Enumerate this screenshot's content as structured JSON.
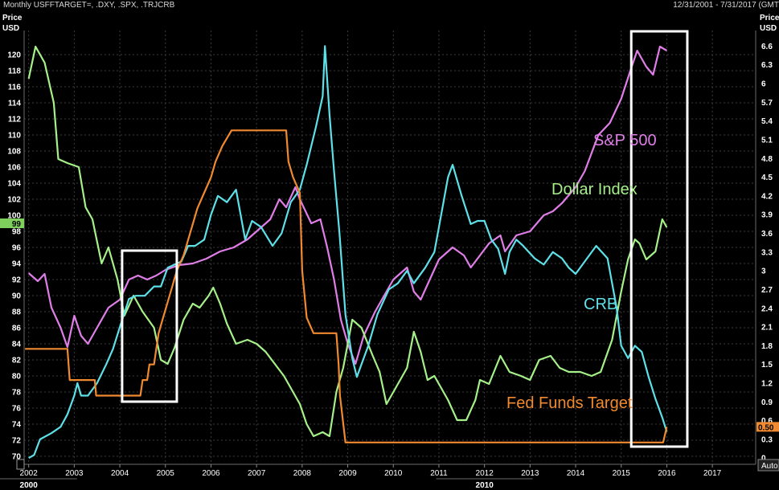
{
  "header": {
    "title": "Monthly USFFTARGET=, .DXY, .SPX, .TRJCRB",
    "date_range": "12/31/2001 - 7/31/2017 (GMT"
  },
  "chart_data": {
    "type": "line",
    "left_axis": {
      "label_line1": "Price",
      "label_line2": "USD",
      "range": [
        69,
        123
      ],
      "ticks": [
        70,
        72,
        74,
        76,
        78,
        80,
        82,
        84,
        86,
        88,
        90,
        92,
        94,
        96,
        98,
        100,
        102,
        104,
        106,
        108,
        110,
        112,
        114,
        116,
        118,
        120
      ],
      "current_value_tag": "99"
    },
    "right_axis": {
      "label_line1": "Price",
      "label_line2": "USD",
      "range": [
        -0.1,
        6.85
      ],
      "ticks": [
        "0",
        "0.3",
        "0.6",
        "0.9",
        "1.2",
        "1.5",
        "1.8",
        "2.1",
        "2.4",
        "2.7",
        "3",
        "3.3",
        "3.6",
        "3.9",
        "4.2",
        "4.5",
        "4.8",
        "5.1",
        "5.4",
        "5.7",
        "6",
        "6.3",
        "6.6"
      ],
      "current_value_tag": "0.50",
      "auto_button": "Auto"
    },
    "x_axis": {
      "range": [
        2001.9,
        2017.95
      ],
      "years": [
        "2002",
        "2003",
        "2004",
        "2005",
        "2006",
        "2007",
        "2008",
        "2009",
        "2010",
        "2011",
        "2012",
        "2013",
        "2014",
        "2015",
        "2016",
        "2017"
      ],
      "decade_labels": [
        {
          "year": 2002,
          "label": "2000"
        },
        {
          "year": 2012,
          "label": "2010"
        }
      ]
    },
    "series": [
      {
        "name": "S&P 500",
        "color": "#e07ee8",
        "axis": "left",
        "points": [
          [
            2002.0,
            92.8
          ],
          [
            2002.2,
            91.8
          ],
          [
            2002.35,
            92.7
          ],
          [
            2002.5,
            88.5
          ],
          [
            2002.7,
            86.0
          ],
          [
            2002.85,
            83.6
          ],
          [
            2003.0,
            87.5
          ],
          [
            2003.15,
            85.0
          ],
          [
            2003.3,
            84.0
          ],
          [
            2003.5,
            86.0
          ],
          [
            2003.75,
            88.5
          ],
          [
            2004.0,
            89.5
          ],
          [
            2004.2,
            92.0
          ],
          [
            2004.4,
            92.5
          ],
          [
            2004.6,
            92.0
          ],
          [
            2004.8,
            92.5
          ],
          [
            2005.0,
            93.2
          ],
          [
            2005.3,
            93.8
          ],
          [
            2005.6,
            94.0
          ],
          [
            2005.9,
            94.6
          ],
          [
            2006.2,
            95.5
          ],
          [
            2006.5,
            96.0
          ],
          [
            2006.8,
            97.0
          ],
          [
            2007.0,
            98.0
          ],
          [
            2007.3,
            99.5
          ],
          [
            2007.5,
            102.0
          ],
          [
            2007.65,
            101.0
          ],
          [
            2007.85,
            103.5
          ],
          [
            2007.95,
            102.0
          ],
          [
            2008.2,
            99.0
          ],
          [
            2008.4,
            99.5
          ],
          [
            2008.55,
            96.0
          ],
          [
            2008.7,
            92.0
          ],
          [
            2008.85,
            87.0
          ],
          [
            2009.0,
            84.0
          ],
          [
            2009.17,
            81.5
          ],
          [
            2009.35,
            85.0
          ],
          [
            2009.6,
            88.0
          ],
          [
            2009.8,
            90.0
          ],
          [
            2010.0,
            92.0
          ],
          [
            2010.3,
            93.5
          ],
          [
            2010.45,
            90.5
          ],
          [
            2010.6,
            89.5
          ],
          [
            2010.8,
            92.0
          ],
          [
            2011.0,
            94.5
          ],
          [
            2011.3,
            96.0
          ],
          [
            2011.55,
            95.0
          ],
          [
            2011.7,
            93.5
          ],
          [
            2011.9,
            95.0
          ],
          [
            2012.1,
            96.5
          ],
          [
            2012.35,
            97.5
          ],
          [
            2012.45,
            95.5
          ],
          [
            2012.7,
            97.5
          ],
          [
            2013.0,
            98.0
          ],
          [
            2013.3,
            100.0
          ],
          [
            2013.5,
            100.5
          ],
          [
            2013.7,
            101.5
          ],
          [
            2014.0,
            103.5
          ],
          [
            2014.2,
            105.5
          ],
          [
            2014.5,
            110.0
          ],
          [
            2014.75,
            111.5
          ],
          [
            2015.0,
            114.5
          ],
          [
            2015.2,
            118.0
          ],
          [
            2015.35,
            120.5
          ],
          [
            2015.55,
            118.5
          ],
          [
            2015.7,
            117.5
          ],
          [
            2015.85,
            121.0
          ],
          [
            2016.0,
            120.5
          ]
        ]
      },
      {
        "name": "Dollar Index",
        "color": "#a6f08a",
        "axis": "left",
        "points": [
          [
            2002.0,
            117.0
          ],
          [
            2002.15,
            121.0
          ],
          [
            2002.35,
            119.0
          ],
          [
            2002.55,
            114.0
          ],
          [
            2002.65,
            107.0
          ],
          [
            2002.85,
            106.5
          ],
          [
            2003.1,
            106.0
          ],
          [
            2003.25,
            101.0
          ],
          [
            2003.4,
            99.5
          ],
          [
            2003.6,
            94.0
          ],
          [
            2003.75,
            96.0
          ],
          [
            2003.95,
            92.0
          ],
          [
            2004.1,
            87.5
          ],
          [
            2004.3,
            90.0
          ],
          [
            2004.5,
            88.0
          ],
          [
            2004.75,
            86.0
          ],
          [
            2004.9,
            82.0
          ],
          [
            2005.05,
            81.5
          ],
          [
            2005.2,
            83.5
          ],
          [
            2005.4,
            87.0
          ],
          [
            2005.6,
            89.0
          ],
          [
            2005.75,
            88.5
          ],
          [
            2005.95,
            90.0
          ],
          [
            2006.05,
            91.0
          ],
          [
            2006.2,
            89.0
          ],
          [
            2006.35,
            86.5
          ],
          [
            2006.55,
            84.0
          ],
          [
            2006.8,
            84.5
          ],
          [
            2007.0,
            84.0
          ],
          [
            2007.2,
            83.0
          ],
          [
            2007.4,
            81.5
          ],
          [
            2007.6,
            80.0
          ],
          [
            2007.8,
            78.0
          ],
          [
            2007.95,
            76.5
          ],
          [
            2008.1,
            74.0
          ],
          [
            2008.25,
            72.5
          ],
          [
            2008.45,
            73.0
          ],
          [
            2008.6,
            72.5
          ],
          [
            2008.75,
            78.0
          ],
          [
            2008.9,
            81.0
          ],
          [
            2009.1,
            87.0
          ],
          [
            2009.3,
            86.0
          ],
          [
            2009.55,
            82.5
          ],
          [
            2009.7,
            80.5
          ],
          [
            2009.85,
            76.5
          ],
          [
            2010.0,
            78.0
          ],
          [
            2010.3,
            81.0
          ],
          [
            2010.45,
            85.5
          ],
          [
            2010.6,
            83.0
          ],
          [
            2010.75,
            79.5
          ],
          [
            2010.9,
            80.0
          ],
          [
            2011.2,
            77.0
          ],
          [
            2011.4,
            74.5
          ],
          [
            2011.6,
            74.5
          ],
          [
            2011.8,
            77.0
          ],
          [
            2011.9,
            79.5
          ],
          [
            2012.1,
            79.0
          ],
          [
            2012.35,
            82.5
          ],
          [
            2012.55,
            80.5
          ],
          [
            2012.8,
            80.0
          ],
          [
            2013.0,
            79.5
          ],
          [
            2013.2,
            82.0
          ],
          [
            2013.45,
            82.5
          ],
          [
            2013.65,
            81.0
          ],
          [
            2013.85,
            80.5
          ],
          [
            2014.1,
            80.5
          ],
          [
            2014.35,
            80.0
          ],
          [
            2014.55,
            80.5
          ],
          [
            2014.8,
            84.5
          ],
          [
            2015.0,
            90.5
          ],
          [
            2015.15,
            94.5
          ],
          [
            2015.3,
            97.0
          ],
          [
            2015.4,
            96.5
          ],
          [
            2015.55,
            94.5
          ],
          [
            2015.75,
            95.5
          ],
          [
            2015.9,
            99.5
          ],
          [
            2016.0,
            98.5
          ]
        ]
      },
      {
        "name": "CRB",
        "color": "#5ee0e8",
        "axis": "right",
        "points": [
          [
            2002.0,
            0.0
          ],
          [
            2002.12,
            0.05
          ],
          [
            2002.25,
            0.3
          ],
          [
            2002.5,
            0.4
          ],
          [
            2002.7,
            0.5
          ],
          [
            2002.85,
            0.7
          ],
          [
            2003.0,
            1.0
          ],
          [
            2003.07,
            1.2
          ],
          [
            2003.15,
            1.0
          ],
          [
            2003.3,
            1.0
          ],
          [
            2003.5,
            1.2
          ],
          [
            2003.7,
            1.5
          ],
          [
            2003.85,
            1.75
          ],
          [
            2004.0,
            2.1
          ],
          [
            2004.2,
            2.55
          ],
          [
            2004.35,
            2.6
          ],
          [
            2004.55,
            2.6
          ],
          [
            2004.75,
            2.75
          ],
          [
            2004.9,
            2.75
          ],
          [
            2005.05,
            3.05
          ],
          [
            2005.2,
            3.1
          ],
          [
            2005.35,
            3.15
          ],
          [
            2005.5,
            3.4
          ],
          [
            2005.65,
            3.4
          ],
          [
            2005.85,
            3.5
          ],
          [
            2006.0,
            3.9
          ],
          [
            2006.15,
            4.2
          ],
          [
            2006.35,
            4.1
          ],
          [
            2006.55,
            4.3
          ],
          [
            2006.75,
            3.5
          ],
          [
            2006.9,
            3.8
          ],
          [
            2007.1,
            3.7
          ],
          [
            2007.35,
            3.4
          ],
          [
            2007.55,
            3.6
          ],
          [
            2007.75,
            4.1
          ],
          [
            2007.95,
            4.3
          ],
          [
            2008.1,
            4.7
          ],
          [
            2008.3,
            5.3
          ],
          [
            2008.45,
            5.8
          ],
          [
            2008.5,
            6.6
          ],
          [
            2008.6,
            5.5
          ],
          [
            2008.7,
            4.6
          ],
          [
            2008.82,
            3.6
          ],
          [
            2008.95,
            2.3
          ],
          [
            2009.1,
            1.6
          ],
          [
            2009.2,
            1.3
          ],
          [
            2009.45,
            1.8
          ],
          [
            2009.65,
            2.3
          ],
          [
            2009.9,
            2.7
          ],
          [
            2010.1,
            2.8
          ],
          [
            2010.3,
            3.0
          ],
          [
            2010.45,
            2.8
          ],
          [
            2010.7,
            3.05
          ],
          [
            2010.9,
            3.3
          ],
          [
            2011.0,
            3.7
          ],
          [
            2011.2,
            4.5
          ],
          [
            2011.3,
            4.7
          ],
          [
            2011.5,
            4.2
          ],
          [
            2011.7,
            3.75
          ],
          [
            2011.85,
            3.8
          ],
          [
            2012.0,
            3.8
          ],
          [
            2012.15,
            3.5
          ],
          [
            2012.3,
            3.35
          ],
          [
            2012.45,
            2.95
          ],
          [
            2012.55,
            3.3
          ],
          [
            2012.7,
            3.5
          ],
          [
            2012.85,
            3.4
          ],
          [
            2013.1,
            3.2
          ],
          [
            2013.3,
            3.1
          ],
          [
            2013.5,
            3.3
          ],
          [
            2013.7,
            3.2
          ],
          [
            2013.85,
            3.05
          ],
          [
            2014.0,
            2.95
          ],
          [
            2014.2,
            3.15
          ],
          [
            2014.45,
            3.4
          ],
          [
            2014.7,
            3.2
          ],
          [
            2014.9,
            2.4
          ],
          [
            2015.0,
            1.8
          ],
          [
            2015.15,
            1.6
          ],
          [
            2015.3,
            1.8
          ],
          [
            2015.45,
            1.7
          ],
          [
            2015.6,
            1.3
          ],
          [
            2015.75,
            0.95
          ],
          [
            2015.9,
            0.65
          ],
          [
            2016.0,
            0.42
          ]
        ]
      },
      {
        "name": "Fed Funds Target",
        "color": "#f08a30",
        "axis": "right",
        "points": [
          [
            2001.92,
            1.75
          ],
          [
            2002.85,
            1.75
          ],
          [
            2002.9,
            1.25
          ],
          [
            2003.45,
            1.25
          ],
          [
            2003.48,
            1.0
          ],
          [
            2004.45,
            1.0
          ],
          [
            2004.5,
            1.25
          ],
          [
            2004.6,
            1.25
          ],
          [
            2004.65,
            1.5
          ],
          [
            2004.75,
            1.5
          ],
          [
            2004.8,
            1.75
          ],
          [
            2004.85,
            2.0
          ],
          [
            2004.95,
            2.25
          ],
          [
            2005.05,
            2.5
          ],
          [
            2005.15,
            2.75
          ],
          [
            2005.25,
            3.0
          ],
          [
            2005.4,
            3.25
          ],
          [
            2005.5,
            3.5
          ],
          [
            2005.6,
            3.75
          ],
          [
            2005.7,
            4.0
          ],
          [
            2005.85,
            4.25
          ],
          [
            2006.0,
            4.5
          ],
          [
            2006.1,
            4.75
          ],
          [
            2006.25,
            5.0
          ],
          [
            2006.45,
            5.25
          ],
          [
            2007.65,
            5.25
          ],
          [
            2007.7,
            4.75
          ],
          [
            2007.8,
            4.5
          ],
          [
            2007.95,
            4.25
          ],
          [
            2008.0,
            3.0
          ],
          [
            2008.1,
            2.25
          ],
          [
            2008.25,
            2.0
          ],
          [
            2008.75,
            2.0
          ],
          [
            2008.8,
            1.5
          ],
          [
            2008.83,
            1.0
          ],
          [
            2008.95,
            0.25
          ],
          [
            2015.92,
            0.25
          ],
          [
            2016.0,
            0.5
          ]
        ]
      }
    ],
    "annotations": [
      {
        "text": "S&P 500",
        "color": "#e07ee8"
      },
      {
        "text": "Dollar Index",
        "color": "#a6f08a"
      },
      {
        "text": "CRB",
        "color": "#5ee0e8"
      },
      {
        "text": "Fed Funds Target",
        "color": "#f08a30"
      }
    ],
    "highlight_boxes": [
      {
        "x_range": [
          2004.05,
          2005.25
        ],
        "y_range": [
          76.8,
          95.6
        ]
      },
      {
        "x_range": [
          2015.22,
          2016.45
        ],
        "y_range": [
          71.2,
          122.9
        ]
      }
    ],
    "grid": true,
    "colors": {
      "background": "#000000",
      "grid": "#3b3b3b",
      "axis_text": "#ffffff",
      "left_tag": "#7ecf5c",
      "right_tag": "#f08a30"
    }
  }
}
